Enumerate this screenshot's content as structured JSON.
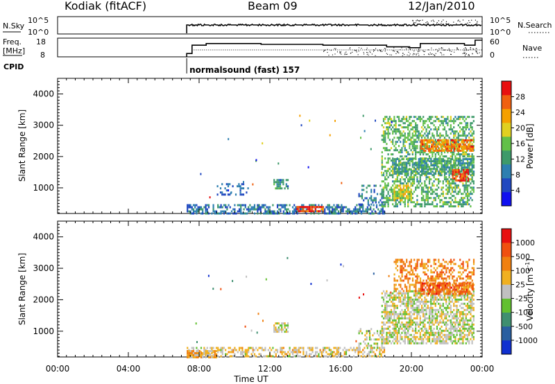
{
  "header": {
    "station": "Kodiak (fitACF)",
    "beam": "Beam 09",
    "date": "12/Jan/2010"
  },
  "summary": {
    "nsky_label": "N.Sky",
    "nsky_ticks": [
      "10^5",
      "10^0"
    ],
    "nsearch_label": "N.Search",
    "nsearch_ticks": [
      "10^5",
      "10^0"
    ],
    "freq_label": "Freq.",
    "freq_unit": "[MHz]",
    "freq_ticks": [
      "18",
      "8"
    ],
    "nave_label": "Nave",
    "nave_ticks": [
      "60",
      "0"
    ],
    "cpid_label": "CPID",
    "cpid_text": "normalsound (fast) 157",
    "data_start_hour": 7.3,
    "freq_steps": [
      {
        "t": 7.3,
        "freq": 10
      },
      {
        "t": 7.6,
        "freq": 15
      },
      {
        "t": 8.4,
        "freq": 16
      },
      {
        "t": 11.5,
        "freq": 15.5
      },
      {
        "t": 15.0,
        "freq": 15
      },
      {
        "t": 18.6,
        "freq": 14
      },
      {
        "t": 19.9,
        "freq": 13.5
      },
      {
        "t": 20.5,
        "freq": 16
      },
      {
        "t": 23.0,
        "freq": 15
      },
      {
        "t": 23.6,
        "freq": 18
      }
    ]
  },
  "chart_data": [
    {
      "type": "heatmap",
      "name": "power",
      "ylabel": "Slant Range [km]",
      "xlabel": "Time UT",
      "x_ticks": [
        "00:00",
        "04:00",
        "08:00",
        "12:00",
        "16:00",
        "20:00",
        "00:00"
      ],
      "xlim_hours": [
        0,
        24
      ],
      "y_ticks": [
        1000,
        2000,
        3000,
        4000
      ],
      "ylim_km": [
        180,
        4500
      ],
      "colorbar": {
        "label": "Power [dB]",
        "range": [
          0,
          32
        ],
        "ticks": [
          4,
          8,
          12,
          16,
          20,
          24,
          28
        ],
        "colors": [
          "#1010f0",
          "#2048c0",
          "#2d7fb0",
          "#3e9a6a",
          "#62c048",
          "#e0d020",
          "#f5a000",
          "#f06010",
          "#e81010"
        ]
      },
      "regions": [
        {
          "t0": 7.3,
          "t1": 18.5,
          "r0": 180,
          "r1": 480,
          "level": 2,
          "density": 0.55
        },
        {
          "t0": 13.5,
          "t1": 15.0,
          "r0": 280,
          "r1": 420,
          "level": 7.5,
          "density": 0.85
        },
        {
          "t0": 9.0,
          "t1": 10.8,
          "r0": 800,
          "r1": 1150,
          "level": 1.5,
          "density": 0.25
        },
        {
          "t0": 12.2,
          "t1": 13.0,
          "r0": 1000,
          "r1": 1280,
          "level": 2.5,
          "density": 0.7
        },
        {
          "t0": 17.0,
          "t1": 18.4,
          "r0": 500,
          "r1": 1100,
          "level": 2,
          "density": 0.3
        },
        {
          "t0": 18.3,
          "t1": 23.5,
          "r0": 400,
          "r1": 3300,
          "level": 3.5,
          "density": 0.5
        },
        {
          "t0": 19.0,
          "t1": 20.0,
          "r0": 600,
          "r1": 1100,
          "level": 5,
          "density": 0.65
        },
        {
          "t0": 19.0,
          "t1": 23.5,
          "r0": 1450,
          "r1": 1950,
          "level": 3,
          "density": 0.6
        },
        {
          "t0": 20.5,
          "t1": 23.5,
          "r0": 2200,
          "r1": 2550,
          "level": 6.5,
          "density": 0.75
        },
        {
          "t0": 22.3,
          "t1": 23.2,
          "r0": 1250,
          "r1": 1600,
          "level": 7.5,
          "density": 0.8
        }
      ]
    },
    {
      "type": "heatmap",
      "name": "velocity",
      "ylabel": "Slant Range [km]",
      "xlabel": "Time UT",
      "x_ticks": [
        "00:00",
        "04:00",
        "08:00",
        "12:00",
        "16:00",
        "20:00",
        "00:00"
      ],
      "xlim_hours": [
        0,
        24
      ],
      "y_ticks": [
        1000,
        2000,
        3000,
        4000
      ],
      "ylim_km": [
        180,
        4500
      ],
      "colorbar": {
        "label": "Velocity [m s^-1]",
        "ticks": [
          "1000",
          "500",
          "100",
          "25",
          "-25",
          "-100",
          "-500",
          "-1000"
        ],
        "colors": [
          "#1030d0",
          "#2a5fa0",
          "#3f8f70",
          "#62c030",
          "#c0c0c0",
          "#f0b020",
          "#f08010",
          "#f05010",
          "#e81010"
        ]
      },
      "regions": [
        {
          "t0": 7.3,
          "t1": 18.5,
          "r0": 180,
          "r1": 500,
          "level": 4.5,
          "density": 0.5
        },
        {
          "t0": 7.3,
          "t1": 9.0,
          "r0": 180,
          "r1": 400,
          "level": 5,
          "density": 0.8
        },
        {
          "t0": 12.2,
          "t1": 13.0,
          "r0": 1000,
          "r1": 1280,
          "level": 4,
          "density": 0.75
        },
        {
          "t0": 17.0,
          "t1": 18.4,
          "r0": 500,
          "r1": 1100,
          "level": 4,
          "density": 0.3
        },
        {
          "t0": 18.3,
          "t1": 23.5,
          "r0": 600,
          "r1": 2300,
          "level": 4,
          "density": 0.65
        },
        {
          "t0": 19.0,
          "t1": 23.5,
          "r0": 2300,
          "r1": 3300,
          "level": 6,
          "density": 0.45
        },
        {
          "t0": 20.5,
          "t1": 23.5,
          "r0": 2200,
          "r1": 2550,
          "level": 6.5,
          "density": 0.75
        }
      ]
    }
  ]
}
